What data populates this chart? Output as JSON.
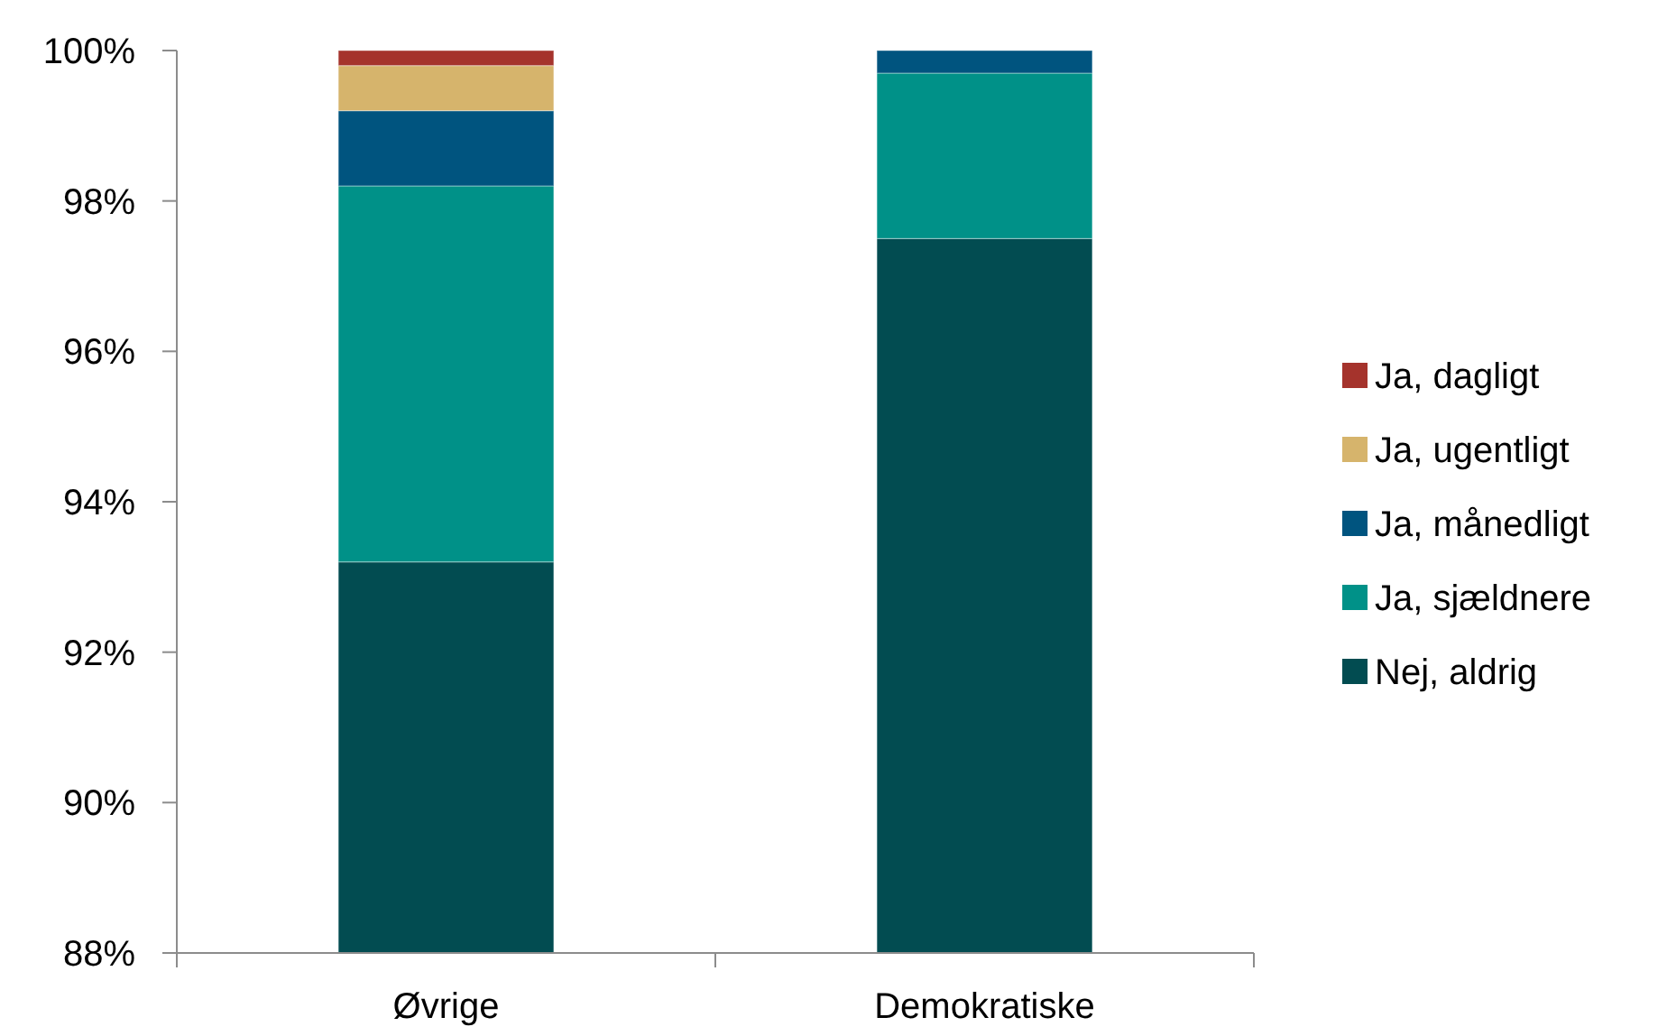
{
  "chart_data": {
    "type": "bar",
    "stacked": true,
    "categories": [
      "Øvrige",
      "Demokratiske"
    ],
    "series": [
      {
        "name": "Nej, aldrig",
        "color": "#024c51",
        "values": [
          93.2,
          97.5
        ]
      },
      {
        "name": "Ja, sjældnere",
        "color": "#009188",
        "base": [
          93.2,
          97.5
        ],
        "values": [
          5.0,
          2.2
        ]
      },
      {
        "name": "Ja, månedligt",
        "color": "#00547f",
        "base": [
          98.2,
          99.7
        ],
        "values": [
          1.0,
          0.3
        ]
      },
      {
        "name": "Ja, ugentligt",
        "color": "#d6b46c",
        "base": [
          99.2,
          null
        ],
        "values": [
          0.6,
          null
        ]
      },
      {
        "name": "Ja, dagligt",
        "color": "#a5332c",
        "base": [
          99.8,
          null
        ],
        "values": [
          0.2,
          null
        ]
      }
    ],
    "ylim": [
      88,
      100
    ],
    "yticks": [
      {
        "value": 88,
        "label": "88%"
      },
      {
        "value": 90,
        "label": "90%"
      },
      {
        "value": 92,
        "label": "92%"
      },
      {
        "value": 94,
        "label": "94%"
      },
      {
        "value": 96,
        "label": "96%"
      },
      {
        "value": 98,
        "label": "98%"
      },
      {
        "value": 100,
        "label": "100%"
      }
    ],
    "legend": "right",
    "grid": false
  }
}
